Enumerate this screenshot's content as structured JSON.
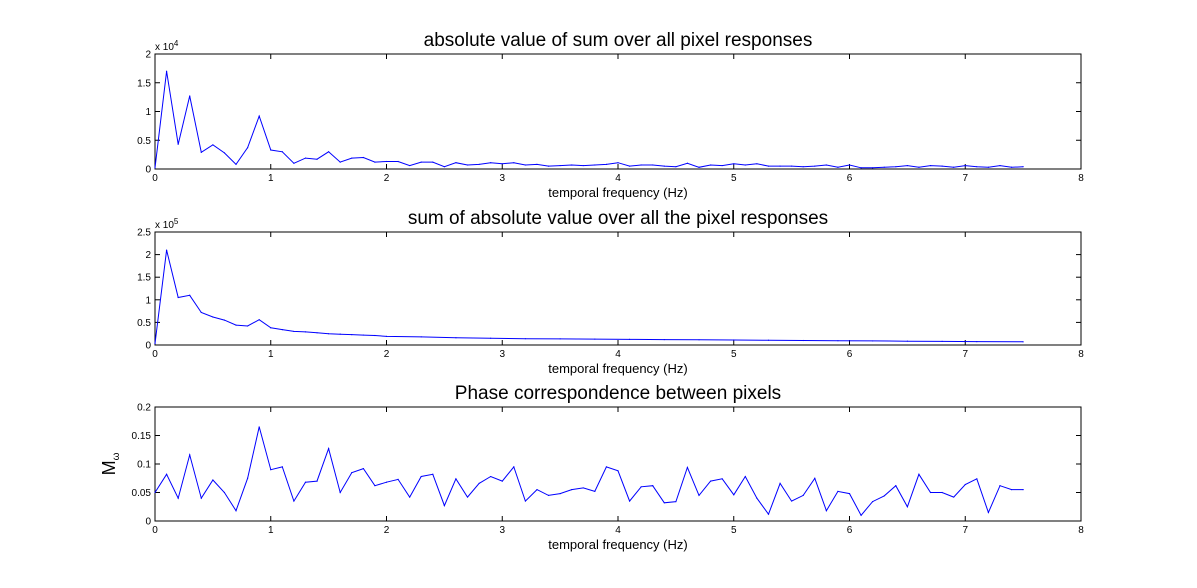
{
  "chart_data": [
    {
      "type": "line",
      "title": "absolute value of sum over all pixel responses",
      "xlabel": "temporal frequency (Hz)",
      "ylabel": "",
      "xlim": [
        0,
        8
      ],
      "ylim": [
        0,
        20000
      ],
      "xticks": [
        0,
        1,
        2,
        3,
        4,
        5,
        6,
        7,
        8
      ],
      "yticks": [
        0,
        0.5,
        1,
        1.5,
        2
      ],
      "y_multiplier": "x 10",
      "y_multiplier_exp": "4",
      "y_scale": 10000,
      "grid": false,
      "series": [
        {
          "color": "#0000ff",
          "x": [
            0,
            0.1,
            0.2,
            0.3,
            0.4,
            0.5,
            0.6,
            0.7,
            0.8,
            0.9,
            1.0,
            1.1,
            1.2,
            1.3,
            1.4,
            1.5,
            1.6,
            1.7,
            1.8,
            1.9,
            2.0,
            2.1,
            2.2,
            2.3,
            2.4,
            2.5,
            2.6,
            2.7,
            2.8,
            2.9,
            3.0,
            3.1,
            3.2,
            3.3,
            3.4,
            3.5,
            3.6,
            3.7,
            3.8,
            3.9,
            4.0,
            4.1,
            4.2,
            4.3,
            4.4,
            4.5,
            4.6,
            4.7,
            4.8,
            4.9,
            5.0,
            5.1,
            5.2,
            5.3,
            5.4,
            5.5,
            5.6,
            5.7,
            5.8,
            5.9,
            6.0,
            6.1,
            6.2,
            6.3,
            6.4,
            6.5,
            6.6,
            6.7,
            6.8,
            6.9,
            7.0,
            7.1,
            7.2,
            7.3,
            7.4,
            7.5
          ],
          "values": [
            200,
            17000,
            4300,
            12700,
            2900,
            4200,
            2800,
            800,
            3700,
            9200,
            3300,
            3000,
            1000,
            1900,
            1700,
            3000,
            1200,
            1900,
            2000,
            1200,
            1300,
            1300,
            600,
            1200,
            1200,
            400,
            1100,
            700,
            800,
            1100,
            900,
            1100,
            700,
            800,
            500,
            600,
            700,
            600,
            700,
            800,
            1100,
            500,
            700,
            700,
            500,
            400,
            1000,
            300,
            700,
            600,
            900,
            700,
            900,
            500,
            500,
            500,
            400,
            500,
            700,
            300,
            700,
            200,
            200,
            300,
            400,
            600,
            300,
            600,
            500,
            300,
            600,
            400,
            300,
            600,
            300,
            400
          ]
        }
      ]
    },
    {
      "type": "line",
      "title": "sum of absolute value over all the pixel responses",
      "xlabel": "temporal frequency (Hz)",
      "ylabel": "",
      "xlim": [
        0,
        8
      ],
      "ylim": [
        0,
        250000
      ],
      "xticks": [
        0,
        1,
        2,
        3,
        4,
        5,
        6,
        7,
        8
      ],
      "yticks": [
        0,
        0.5,
        1,
        1.5,
        2,
        2.5
      ],
      "y_multiplier": "x 10",
      "y_multiplier_exp": "5",
      "y_scale": 100000,
      "grid": false,
      "series": [
        {
          "color": "#0000ff",
          "x": [
            0,
            0.1,
            0.2,
            0.3,
            0.4,
            0.5,
            0.6,
            0.7,
            0.8,
            0.9,
            1.0,
            1.1,
            1.2,
            1.3,
            1.4,
            1.5,
            1.6,
            1.7,
            1.8,
            1.9,
            2.0,
            2.3,
            2.6,
            2.9,
            3.2,
            3.5,
            3.8,
            4.1,
            4.4,
            4.7,
            5.0,
            5.3,
            5.6,
            5.9,
            6.2,
            6.5,
            6.8,
            7.1,
            7.5
          ],
          "values": [
            3000,
            210000,
            105000,
            110000,
            72000,
            62000,
            55000,
            44000,
            42000,
            56000,
            38000,
            34000,
            30000,
            29000,
            27000,
            25000,
            24000,
            23000,
            22000,
            21000,
            19000,
            18000,
            16000,
            15000,
            14000,
            13500,
            13000,
            12500,
            12000,
            11500,
            11000,
            10500,
            10000,
            9500,
            9000,
            8500,
            8000,
            7500,
            7000
          ]
        }
      ]
    },
    {
      "type": "line",
      "title": "Phase correspondence between pixels",
      "xlabel": "temporal frequency (Hz)",
      "ylabel": "M",
      "ylabel_sub": "ω",
      "xlim": [
        0,
        8
      ],
      "ylim": [
        0,
        0.2
      ],
      "xticks": [
        0,
        1,
        2,
        3,
        4,
        5,
        6,
        7,
        8
      ],
      "yticks": [
        0,
        0.05,
        0.1,
        0.15,
        0.2
      ],
      "y_scale": 1,
      "grid": false,
      "series": [
        {
          "color": "#0000ff",
          "x": [
            0,
            0.1,
            0.2,
            0.3,
            0.4,
            0.5,
            0.6,
            0.7,
            0.8,
            0.9,
            1.0,
            1.1,
            1.2,
            1.3,
            1.4,
            1.5,
            1.6,
            1.7,
            1.8,
            1.9,
            2.0,
            2.1,
            2.2,
            2.3,
            2.4,
            2.5,
            2.6,
            2.7,
            2.8,
            2.9,
            3.0,
            3.1,
            3.2,
            3.3,
            3.4,
            3.5,
            3.6,
            3.7,
            3.8,
            3.9,
            4.0,
            4.1,
            4.2,
            4.3,
            4.4,
            4.5,
            4.6,
            4.7,
            4.8,
            4.9,
            5.0,
            5.1,
            5.2,
            5.3,
            5.4,
            5.5,
            5.6,
            5.7,
            5.8,
            5.9,
            6.0,
            6.1,
            6.2,
            6.3,
            6.4,
            6.5,
            6.6,
            6.7,
            6.8,
            6.9,
            7.0,
            7.1,
            7.2,
            7.3,
            7.4,
            7.5
          ],
          "values": [
            0.05,
            0.082,
            0.04,
            0.116,
            0.04,
            0.072,
            0.05,
            0.018,
            0.075,
            0.165,
            0.09,
            0.095,
            0.035,
            0.068,
            0.07,
            0.127,
            0.05,
            0.085,
            0.092,
            0.062,
            0.068,
            0.073,
            0.042,
            0.078,
            0.082,
            0.027,
            0.074,
            0.042,
            0.066,
            0.078,
            0.07,
            0.095,
            0.035,
            0.055,
            0.045,
            0.048,
            0.055,
            0.058,
            0.052,
            0.095,
            0.088,
            0.035,
            0.06,
            0.062,
            0.032,
            0.034,
            0.094,
            0.045,
            0.07,
            0.074,
            0.046,
            0.078,
            0.04,
            0.012,
            0.066,
            0.035,
            0.045,
            0.075,
            0.018,
            0.052,
            0.048,
            0.01,
            0.034,
            0.044,
            0.062,
            0.025,
            0.082,
            0.05,
            0.05,
            0.042,
            0.064,
            0.074,
            0.015,
            0.062,
            0.055,
            0.055
          ]
        }
      ]
    }
  ]
}
